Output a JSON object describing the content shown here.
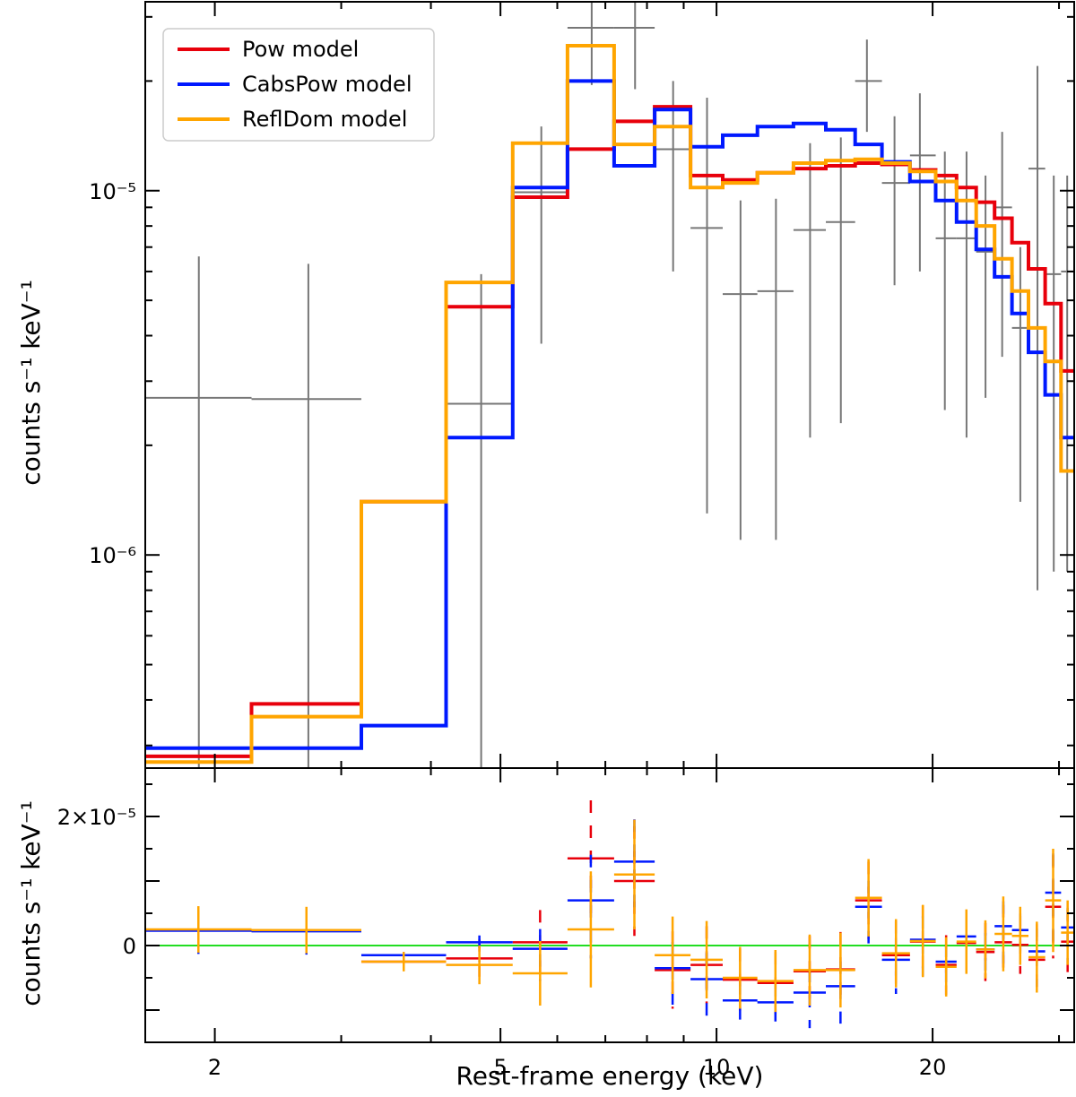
{
  "chart_data": [
    {
      "type": "line",
      "panel": "top",
      "xlabel": "",
      "ylabel": "counts s⁻¹ keV⁻¹",
      "xscale": "log",
      "yscale": "log",
      "xlim": [
        1.6,
        31.5
      ],
      "ylim": [
        2.6e-07,
        3.3e-05
      ],
      "yticks": [
        {
          "value": 1e-05,
          "label": "10⁻⁵"
        },
        {
          "value": 1e-06,
          "label": "10⁻⁶"
        }
      ],
      "legend": {
        "placement": "upper-left",
        "entries": [
          "Pow model",
          "CabsPow model",
          "ReflDom model"
        ]
      },
      "bins": [
        [
          1.6,
          2.25
        ],
        [
          2.25,
          3.2
        ],
        [
          3.2,
          4.2
        ],
        [
          4.2,
          5.2
        ],
        [
          5.2,
          6.2
        ],
        [
          6.2,
          7.2
        ],
        [
          7.2,
          8.2
        ],
        [
          8.2,
          9.2
        ],
        [
          9.2,
          10.2
        ],
        [
          10.2,
          11.4
        ],
        [
          11.4,
          12.8
        ],
        [
          12.8,
          14.2
        ],
        [
          14.2,
          15.6
        ],
        [
          15.6,
          17.0
        ],
        [
          17.0,
          18.6
        ],
        [
          18.6,
          20.2
        ],
        [
          20.2,
          21.6
        ],
        [
          21.6,
          23.0
        ],
        [
          23.0,
          24.4
        ],
        [
          24.4,
          25.8
        ],
        [
          25.8,
          27.2
        ],
        [
          27.2,
          28.7
        ],
        [
          28.7,
          30.2
        ],
        [
          30.2,
          31.5
        ]
      ],
      "series": [
        {
          "name": "Pow model",
          "color": "#e8000b",
          "values": [
            2.8e-07,
            3.9e-07,
            1.4e-06,
            4.8e-06,
            9.6e-06,
            1.3e-05,
            1.55e-05,
            1.7e-05,
            1.1e-05,
            1.07e-05,
            1.12e-05,
            1.15e-05,
            1.17e-05,
            1.19e-05,
            1.18e-05,
            1.14e-05,
            1.1e-05,
            1.02e-05,
            9.3e-06,
            8.4e-06,
            7.2e-06,
            6.1e-06,
            4.9e-06,
            3.2e-06
          ]
        },
        {
          "name": "CabsPow model",
          "color": "#0019ff",
          "values": [
            2.95e-07,
            2.95e-07,
            3.4e-07,
            2.1e-06,
            1.02e-05,
            2e-05,
            1.17e-05,
            1.67e-05,
            1.32e-05,
            1.42e-05,
            1.5e-05,
            1.53e-05,
            1.47e-05,
            1.34e-05,
            1.2e-05,
            1.06e-05,
            9.4e-06,
            8.2e-06,
            6.9e-06,
            5.8e-06,
            4.6e-06,
            3.6e-06,
            2.75e-06,
            2.1e-06
          ]
        },
        {
          "name": "ReflDom model",
          "color": "#ffa500",
          "values": [
            2.7e-07,
            3.6e-07,
            1.4e-06,
            5.6e-06,
            1.35e-05,
            2.5e-05,
            1.34e-05,
            1.5e-05,
            1.02e-05,
            1.05e-05,
            1.12e-05,
            1.19e-05,
            1.21e-05,
            1.22e-05,
            1.19e-05,
            1.13e-05,
            1.06e-05,
            9.4e-06,
            8e-06,
            6.5e-06,
            5.3e-06,
            4.2e-06,
            3.4e-06,
            1.7e-06
          ]
        }
      ],
      "data_points": {
        "name": "data",
        "color": "#777777",
        "points": [
          {
            "x": 1.9,
            "xlo": 1.6,
            "xhi": 2.25,
            "y": 2.7e-06,
            "ylo": 2.6e-07,
            "yhi": 6.6e-06
          },
          {
            "x": 2.7,
            "xlo": 2.25,
            "xhi": 3.2,
            "y": 2.68e-06,
            "ylo": 2.6e-07,
            "yhi": 6.3e-06
          },
          {
            "x": 4.7,
            "xlo": 4.2,
            "xhi": 5.2,
            "y": 2.6e-06,
            "ylo": 2.6e-07,
            "yhi": 5.9e-06
          },
          {
            "x": 5.7,
            "xlo": 5.2,
            "xhi": 6.2,
            "y": 9.9e-06,
            "ylo": 3.8e-06,
            "yhi": 1.5e-05
          },
          {
            "x": 6.7,
            "xlo": 6.2,
            "xhi": 7.2,
            "y": 2.8e-05,
            "ylo": 1.95e-05,
            "yhi": 3.6e-05
          },
          {
            "x": 7.7,
            "xlo": 7.2,
            "xhi": 8.2,
            "y": 2.8e-05,
            "ylo": 1.9e-05,
            "yhi": 3.6e-05
          },
          {
            "x": 8.7,
            "xlo": 8.2,
            "xhi": 9.2,
            "y": 1.3e-05,
            "ylo": 6e-06,
            "yhi": 2e-05
          },
          {
            "x": 9.7,
            "xlo": 9.2,
            "xhi": 10.2,
            "y": 7.9e-06,
            "ylo": 1.3e-06,
            "yhi": 1.8e-05
          },
          {
            "x": 10.8,
            "xlo": 10.2,
            "xhi": 11.4,
            "y": 5.2e-06,
            "ylo": 1.1e-06,
            "yhi": 9.4e-06
          },
          {
            "x": 12.1,
            "xlo": 11.4,
            "xhi": 12.8,
            "y": 5.3e-06,
            "ylo": 1.1e-06,
            "yhi": 9.5e-06
          },
          {
            "x": 13.5,
            "xlo": 12.8,
            "xhi": 14.2,
            "y": 7.8e-06,
            "ylo": 2.1e-06,
            "yhi": 1.35e-05
          },
          {
            "x": 14.9,
            "xlo": 14.2,
            "xhi": 15.6,
            "y": 8.2e-06,
            "ylo": 2.3e-06,
            "yhi": 1.4e-05
          },
          {
            "x": 16.2,
            "xlo": 15.6,
            "xhi": 17.0,
            "y": 2e-05,
            "ylo": 1.45e-05,
            "yhi": 2.6e-05
          },
          {
            "x": 17.7,
            "xlo": 17.0,
            "xhi": 18.6,
            "y": 1.05e-05,
            "ylo": 5.5e-06,
            "yhi": 1.6e-05
          },
          {
            "x": 19.2,
            "xlo": 18.6,
            "xhi": 20.2,
            "y": 1.25e-05,
            "ylo": 6e-06,
            "yhi": 1.85e-05
          },
          {
            "x": 20.8,
            "xlo": 20.2,
            "xhi": 21.6,
            "y": 7.4e-06,
            "ylo": 2.5e-06,
            "yhi": 1.28e-05
          },
          {
            "x": 22.3,
            "xlo": 21.6,
            "xhi": 23.0,
            "y": 7.4e-06,
            "ylo": 2.1e-06,
            "yhi": 1.28e-05
          },
          {
            "x": 23.7,
            "xlo": 23.0,
            "xhi": 24.4,
            "y": 6.8e-06,
            "ylo": 2.7e-06,
            "yhi": 1.1e-05
          },
          {
            "x": 25.0,
            "xlo": 24.4,
            "xhi": 25.8,
            "y": 9e-06,
            "ylo": 3.5e-06,
            "yhi": 1.45e-05
          },
          {
            "x": 26.5,
            "xlo": 25.8,
            "xhi": 27.2,
            "y": 4.2e-06,
            "ylo": 1.4e-06,
            "yhi": 7e-06
          },
          {
            "x": 28.0,
            "xlo": 27.2,
            "xhi": 28.7,
            "y": 1.15e-05,
            "ylo": 8e-07,
            "yhi": 2.2e-05
          },
          {
            "x": 29.5,
            "xlo": 28.7,
            "xhi": 30.2,
            "y": 5.9e-06,
            "ylo": 9e-07,
            "yhi": 1.1e-05
          },
          {
            "x": 30.8,
            "xlo": 30.2,
            "xhi": 31.5,
            "y": 6e-06,
            "ylo": 9e-07,
            "yhi": 1.1e-05
          }
        ]
      }
    },
    {
      "type": "scatter",
      "panel": "bottom",
      "xlabel": "Rest-frame energy (keV)",
      "ylabel": "counts s⁻¹ keV⁻¹",
      "xscale": "log",
      "yscale": "linear",
      "xlim": [
        1.6,
        31.5
      ],
      "ylim": [
        -1.5e-05,
        2.75e-05
      ],
      "xticks": [
        {
          "value": 2,
          "label": "2"
        },
        {
          "value": 5,
          "label": "5"
        },
        {
          "value": 10,
          "label": "10"
        },
        {
          "value": 20,
          "label": "20"
        }
      ],
      "yticks": [
        {
          "value": 2e-05,
          "label": "2×10⁻⁵"
        },
        {
          "value": 0,
          "label": "0"
        }
      ],
      "zero_line_color": "#22dd22",
      "bins": [
        [
          1.6,
          2.25
        ],
        [
          2.25,
          3.2
        ],
        [
          3.2,
          4.2
        ],
        [
          4.2,
          5.2
        ],
        [
          5.2,
          6.2
        ],
        [
          6.2,
          7.2
        ],
        [
          7.2,
          8.2
        ],
        [
          8.2,
          9.2
        ],
        [
          9.2,
          10.2
        ],
        [
          10.2,
          11.4
        ],
        [
          11.4,
          12.8
        ],
        [
          12.8,
          14.2
        ],
        [
          14.2,
          15.6
        ],
        [
          15.6,
          17.0
        ],
        [
          17.0,
          18.6
        ],
        [
          18.6,
          20.2
        ],
        [
          20.2,
          21.6
        ],
        [
          21.6,
          23.0
        ],
        [
          23.0,
          24.4
        ],
        [
          24.4,
          25.8
        ],
        [
          25.8,
          27.2
        ],
        [
          27.2,
          28.7
        ],
        [
          28.7,
          30.2
        ],
        [
          30.2,
          31.5
        ]
      ],
      "series": [
        {
          "name": "Pow model",
          "color": "#e8000b",
          "values": [
            2.4e-06,
            2.3e-06,
            -2.5e-06,
            -2e-06,
            5e-07,
            1.35e-05,
            1e-05,
            -3.8e-06,
            -3e-06,
            -5.3e-06,
            -5.8e-06,
            -4e-06,
            -3.7e-06,
            7e-06,
            -1.5e-06,
            6e-07,
            -3e-06,
            4e-07,
            -1e-06,
            5e-07,
            1e-07,
            -2.2e-06,
            6e-06,
            6e-07
          ],
          "errors": [
            3.6e-06,
            3.6e-06,
            1.5e-06,
            3e-06,
            5e-06,
            9e-06,
            8.5e-06,
            6e-06,
            6e-06,
            4.8e-06,
            4.8e-06,
            5.5e-06,
            5.8e-06,
            6e-06,
            5.3e-06,
            5.6e-06,
            4.6e-06,
            5e-06,
            4.5e-06,
            5.8e-06,
            4.5e-06,
            5.5e-06,
            8e-06,
            5e-06
          ]
        },
        {
          "name": "CabsPow model",
          "color": "#0019ff",
          "values": [
            2.3e-06,
            2.2e-06,
            -1.5e-06,
            5e-07,
            -5e-07,
            7e-06,
            1.3e-05,
            -3.5e-06,
            -5.2e-06,
            -8.5e-06,
            -8.8e-06,
            -7.3e-06,
            -6.3e-06,
            6e-06,
            -2.2e-06,
            9e-07,
            -2.5e-06,
            1.4e-06,
            -6e-07,
            3e-06,
            2.4e-06,
            -9e-07,
            8.2e-06,
            2.8e-06
          ],
          "errors": [
            3.6e-06,
            3.6e-06,
            1.5e-06,
            3e-06,
            5e-06,
            9e-06,
            8.5e-06,
            6e-06,
            6e-06,
            4.8e-06,
            4.8e-06,
            5.5e-06,
            5.8e-06,
            6e-06,
            5.3e-06,
            5.6e-06,
            4.6e-06,
            5e-06,
            4.5e-06,
            5.8e-06,
            4.5e-06,
            5.5e-06,
            8e-06,
            5e-06
          ]
        },
        {
          "name": "ReflDom model",
          "color": "#ffa500",
          "values": [
            2.5e-06,
            2.4e-06,
            -2.5e-06,
            -3e-06,
            -4.3e-06,
            2.5e-06,
            1.1e-05,
            -1.5e-06,
            -2.2e-06,
            -5e-06,
            -5.5e-06,
            -3.8e-06,
            -3.8e-06,
            7.4e-06,
            -1.2e-06,
            7e-07,
            -3.3e-06,
            6e-07,
            -6e-07,
            1.8e-06,
            1.5e-06,
            -1.8e-06,
            7e-06,
            2e-06
          ],
          "errors": [
            3.6e-06,
            3.6e-06,
            1.5e-06,
            3e-06,
            5e-06,
            9e-06,
            8.5e-06,
            6e-06,
            6e-06,
            4.8e-06,
            4.8e-06,
            5.5e-06,
            5.8e-06,
            6e-06,
            5.3e-06,
            5.6e-06,
            4.6e-06,
            5e-06,
            4.5e-06,
            5.8e-06,
            4.5e-06,
            5.5e-06,
            8e-06,
            5e-06
          ]
        }
      ]
    }
  ]
}
